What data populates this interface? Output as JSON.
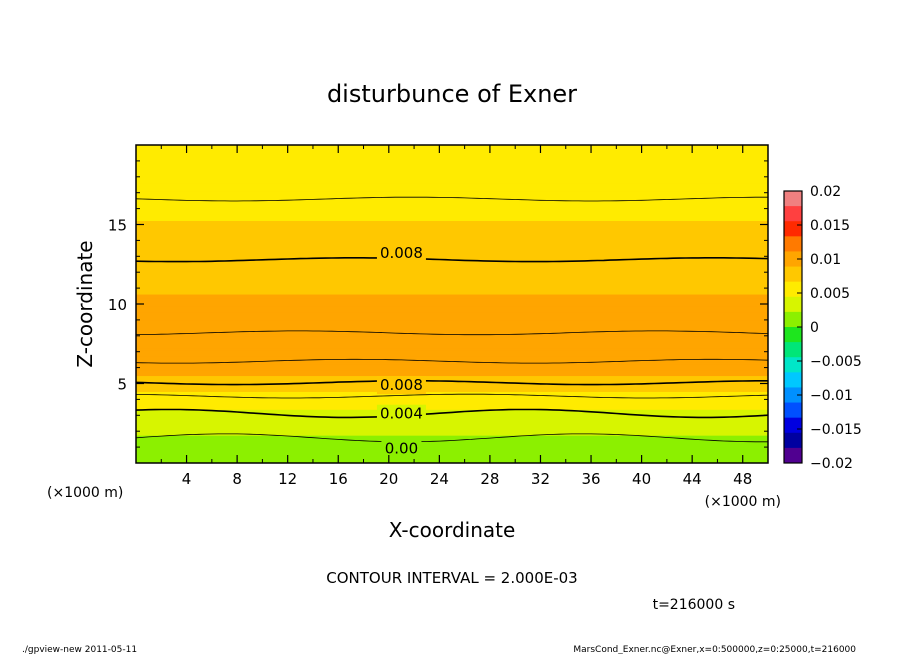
{
  "chart_data": {
    "type": "heatmap",
    "title": "disturbunce of Exner",
    "xlabel": "X-coordinate",
    "ylabel": "Z-coordinate",
    "x_unit": "(×1000 m)",
    "y_unit": "(×1000 m)",
    "xlim": [
      0,
      50
    ],
    "ylim": [
      0,
      20
    ],
    "x_ticks": [
      4,
      8,
      12,
      16,
      20,
      24,
      28,
      32,
      36,
      40,
      44,
      48
    ],
    "y_ticks": [
      5,
      10,
      15
    ],
    "z_profile": [
      {
        "z": 0.0,
        "value": 0.0004
      },
      {
        "z": 1.0,
        "value": 0.0013
      },
      {
        "z": 2.0,
        "value": 0.0025
      },
      {
        "z": 3.0,
        "value": 0.0038
      },
      {
        "z": 4.0,
        "value": 0.0055
      },
      {
        "z": 5.0,
        "value": 0.0079
      },
      {
        "z": 6.0,
        "value": 0.0098
      },
      {
        "z": 7.0,
        "value": 0.0103
      },
      {
        "z": 8.0,
        "value": 0.0101
      },
      {
        "z": 9.5,
        "value": 0.0093
      },
      {
        "z": 11.5,
        "value": 0.0086
      },
      {
        "z": 13.0,
        "value": 0.0079
      },
      {
        "z": 15.0,
        "value": 0.0068
      },
      {
        "z": 17.0,
        "value": 0.0058
      },
      {
        "z": 18.5,
        "value": 0.0051
      },
      {
        "z": 20.0,
        "value": 0.0047
      }
    ],
    "contour_labels": [
      {
        "text": "0.008",
        "x": 21,
        "z": 13.2
      },
      {
        "text": "0.008",
        "x": 21,
        "z": 4.9
      },
      {
        "text": "0.004",
        "x": 21,
        "z": 3.1
      },
      {
        "text": "0.00",
        "x": 21,
        "z": 0.9
      }
    ],
    "contour_interval": "CONTOUR INTERVAL = 2.000E-03",
    "colorbar": {
      "ticks": [
        "0.02",
        "0.015",
        "0.01",
        "0.005",
        "0",
        "−0.005",
        "−0.01",
        "−0.015",
        "−0.02"
      ],
      "colors": [
        "#f08080",
        "#ff4040",
        "#ff2a00",
        "#ff7a00",
        "#ffa500",
        "#ffc800",
        "#ffeb00",
        "#d7f500",
        "#8cf000",
        "#1ee61e",
        "#00e678",
        "#00e6c8",
        "#00c8ff",
        "#0090ff",
        "#0050ff",
        "#0000e0",
        "#0000a0",
        "#500090"
      ]
    },
    "time_label": "t=216000 s"
  },
  "footer": {
    "left": "./gpview-new  2011-05-11",
    "right": "MarsCond_Exner.nc@Exner,x=0:500000,z=0:25000,t=216000"
  }
}
